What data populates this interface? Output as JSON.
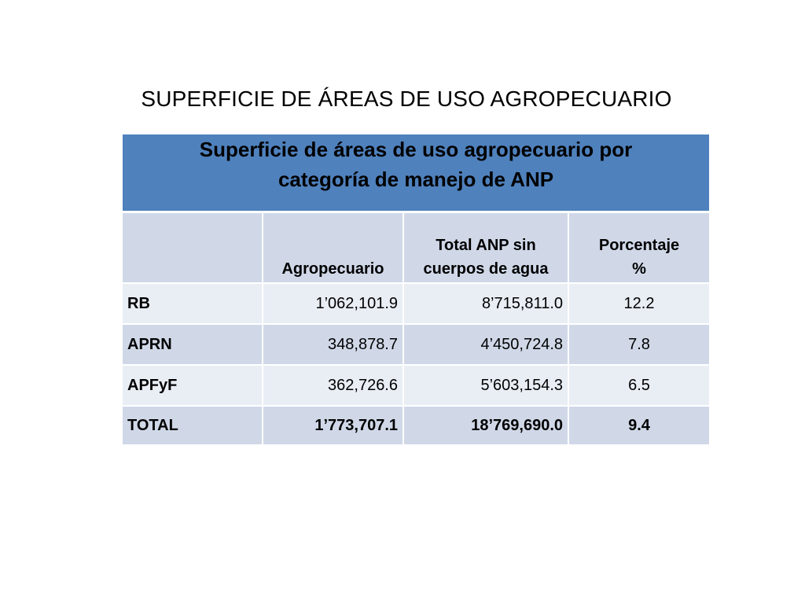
{
  "slide": {
    "title": "SUPERFICIE DE ÁREAS DE USO AGROPECUARIO"
  },
  "table": {
    "banner_line1": "Superficie de áreas de uso agropecuario por",
    "banner_line2": "categoría de manejo de ANP",
    "headers": {
      "category": "",
      "agropecuario": "Agropecuario",
      "total_line1": "Total ANP sin",
      "total_line2": "cuerpos de agua",
      "pct_line1": "Porcentaje",
      "pct_line2": "%"
    },
    "rows": [
      {
        "category": "RB",
        "agropecuario": "1’062,101.9",
        "total": "8’715,811.0",
        "pct": "12.2"
      },
      {
        "category": "APRN",
        "agropecuario": "348,878.7",
        "total": "4’450,724.8",
        "pct": "7.8"
      },
      {
        "category": "APFyF",
        "agropecuario": "362,726.6",
        "total": "5’603,154.3",
        "pct": "6.5"
      },
      {
        "category": "TOTAL",
        "agropecuario": "1’773,707.1",
        "total": "18’769,690.0",
        "pct": "9.4"
      }
    ]
  },
  "colors": {
    "banner": "#4f81bd",
    "header_band": "#d0d8e8",
    "row_light": "#e9edf4",
    "row_dark": "#d0d8e8"
  }
}
